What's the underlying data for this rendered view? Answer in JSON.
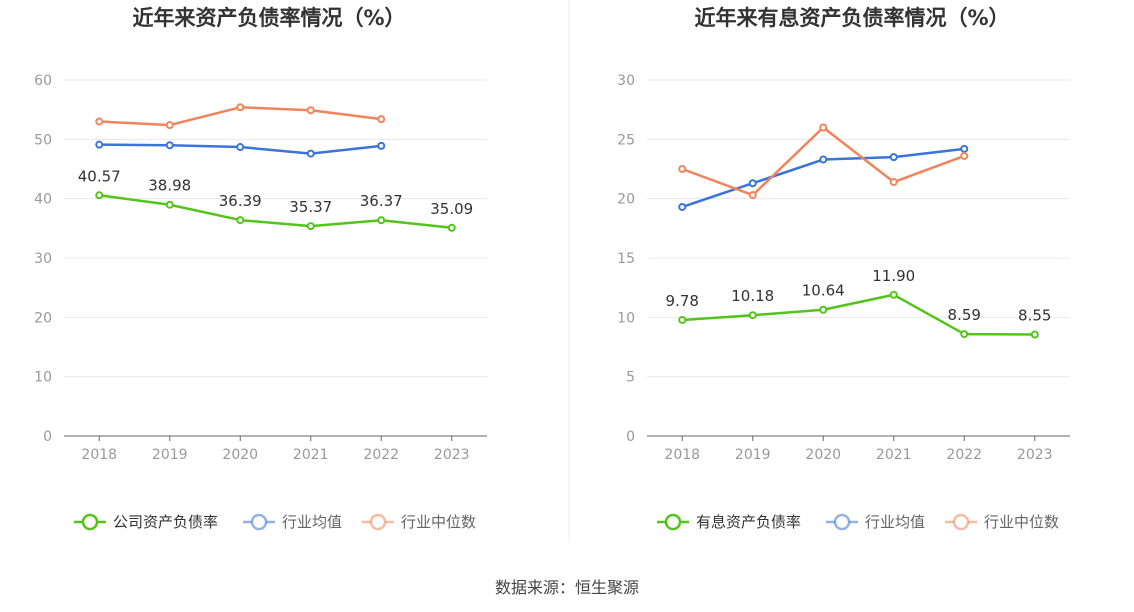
{
  "colors": {
    "company": "#52c41a",
    "industry_avg": "#3a73d9",
    "industry_median": "#f0845a",
    "grid": "#e6e8ef",
    "axis": "#666666",
    "divider": "#eeeeee"
  },
  "chart_data": [
    {
      "type": "line",
      "title": "近年来资产负债率情况（%）",
      "categories": [
        "2018",
        "2019",
        "2020",
        "2021",
        "2022",
        "2023"
      ],
      "ylim": [
        0,
        60
      ],
      "yticks": [
        0,
        10,
        20,
        30,
        40,
        50,
        60
      ],
      "grid": true,
      "legend_position": "bottom",
      "series": [
        {
          "name": "公司资产负债率",
          "color_key": "company",
          "values": [
            40.57,
            38.98,
            36.39,
            35.37,
            36.37,
            35.09
          ],
          "labels": [
            "40.57",
            "38.98",
            "36.39",
            "35.37",
            "36.37",
            "35.09"
          ]
        },
        {
          "name": "行业均值",
          "color_key": "industry_avg",
          "values": [
            49.1,
            49.0,
            48.7,
            47.6,
            48.9,
            null
          ]
        },
        {
          "name": "行业中位数",
          "color_key": "industry_median",
          "values": [
            53.0,
            52.4,
            55.4,
            54.9,
            53.4,
            null
          ]
        }
      ]
    },
    {
      "type": "line",
      "title": "近年来有息资产负债率情况（%）",
      "categories": [
        "2018",
        "2019",
        "2020",
        "2021",
        "2022",
        "2023"
      ],
      "ylim": [
        0,
        30
      ],
      "yticks": [
        0,
        5,
        10,
        15,
        20,
        25,
        30
      ],
      "grid": true,
      "legend_position": "bottom",
      "series": [
        {
          "name": "有息资产负债率",
          "color_key": "company",
          "values": [
            9.78,
            10.18,
            10.64,
            11.9,
            8.59,
            8.55
          ],
          "labels": [
            "9.78",
            "10.18",
            "10.64",
            "11.90",
            "8.59",
            "8.55"
          ]
        },
        {
          "name": "行业均值",
          "color_key": "industry_avg",
          "values": [
            19.3,
            21.3,
            23.3,
            23.5,
            24.2,
            null
          ]
        },
        {
          "name": "行业中位数",
          "color_key": "industry_median",
          "values": [
            22.5,
            20.3,
            26.0,
            21.4,
            23.6,
            null
          ]
        }
      ]
    }
  ],
  "footer": {
    "source": "数据来源：恒生聚源"
  }
}
